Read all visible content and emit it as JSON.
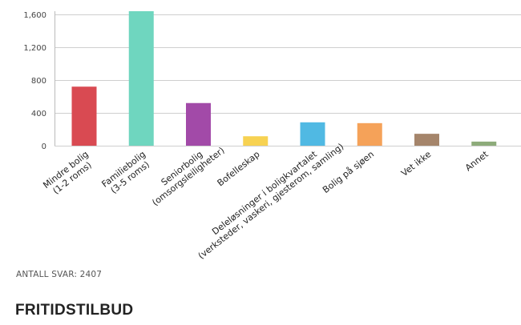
{
  "chart_data": {
    "type": "bar",
    "categories": [
      [
        "Mindre bolig",
        "(1-2 roms)"
      ],
      [
        "Familiebolig",
        "(3-5 roms)"
      ],
      [
        "Seniorbolig",
        "(omsorgsleiligheter)"
      ],
      [
        "Bofelleskap"
      ],
      [
        "Deleløsninger i boligkvartalet",
        "(verksteder, vaskeri, gjesterom, samling)"
      ],
      [
        "Bolig på sjøen"
      ],
      [
        "Vet ikke"
      ],
      [
        "Annet"
      ]
    ],
    "values": [
      720,
      1640,
      520,
      115,
      285,
      275,
      145,
      50
    ],
    "colors": [
      "#d94a52",
      "#6fd6bf",
      "#a24aa8",
      "#f7d252",
      "#50b9e3",
      "#f5a259",
      "#a5856b",
      "#8dab7a"
    ],
    "yticks": [
      0,
      400,
      800,
      1200,
      1600
    ],
    "ytick_labels": [
      "0",
      "400",
      "800",
      "1,200",
      "1,600"
    ],
    "ylim": [
      0,
      1640
    ],
    "grid": true,
    "title": "",
    "xlabel": "",
    "ylabel": ""
  },
  "footer": {
    "responses": "ANTALL SVAR: 2407"
  },
  "next_section": {
    "title": "FRITIDSTILBUD"
  }
}
